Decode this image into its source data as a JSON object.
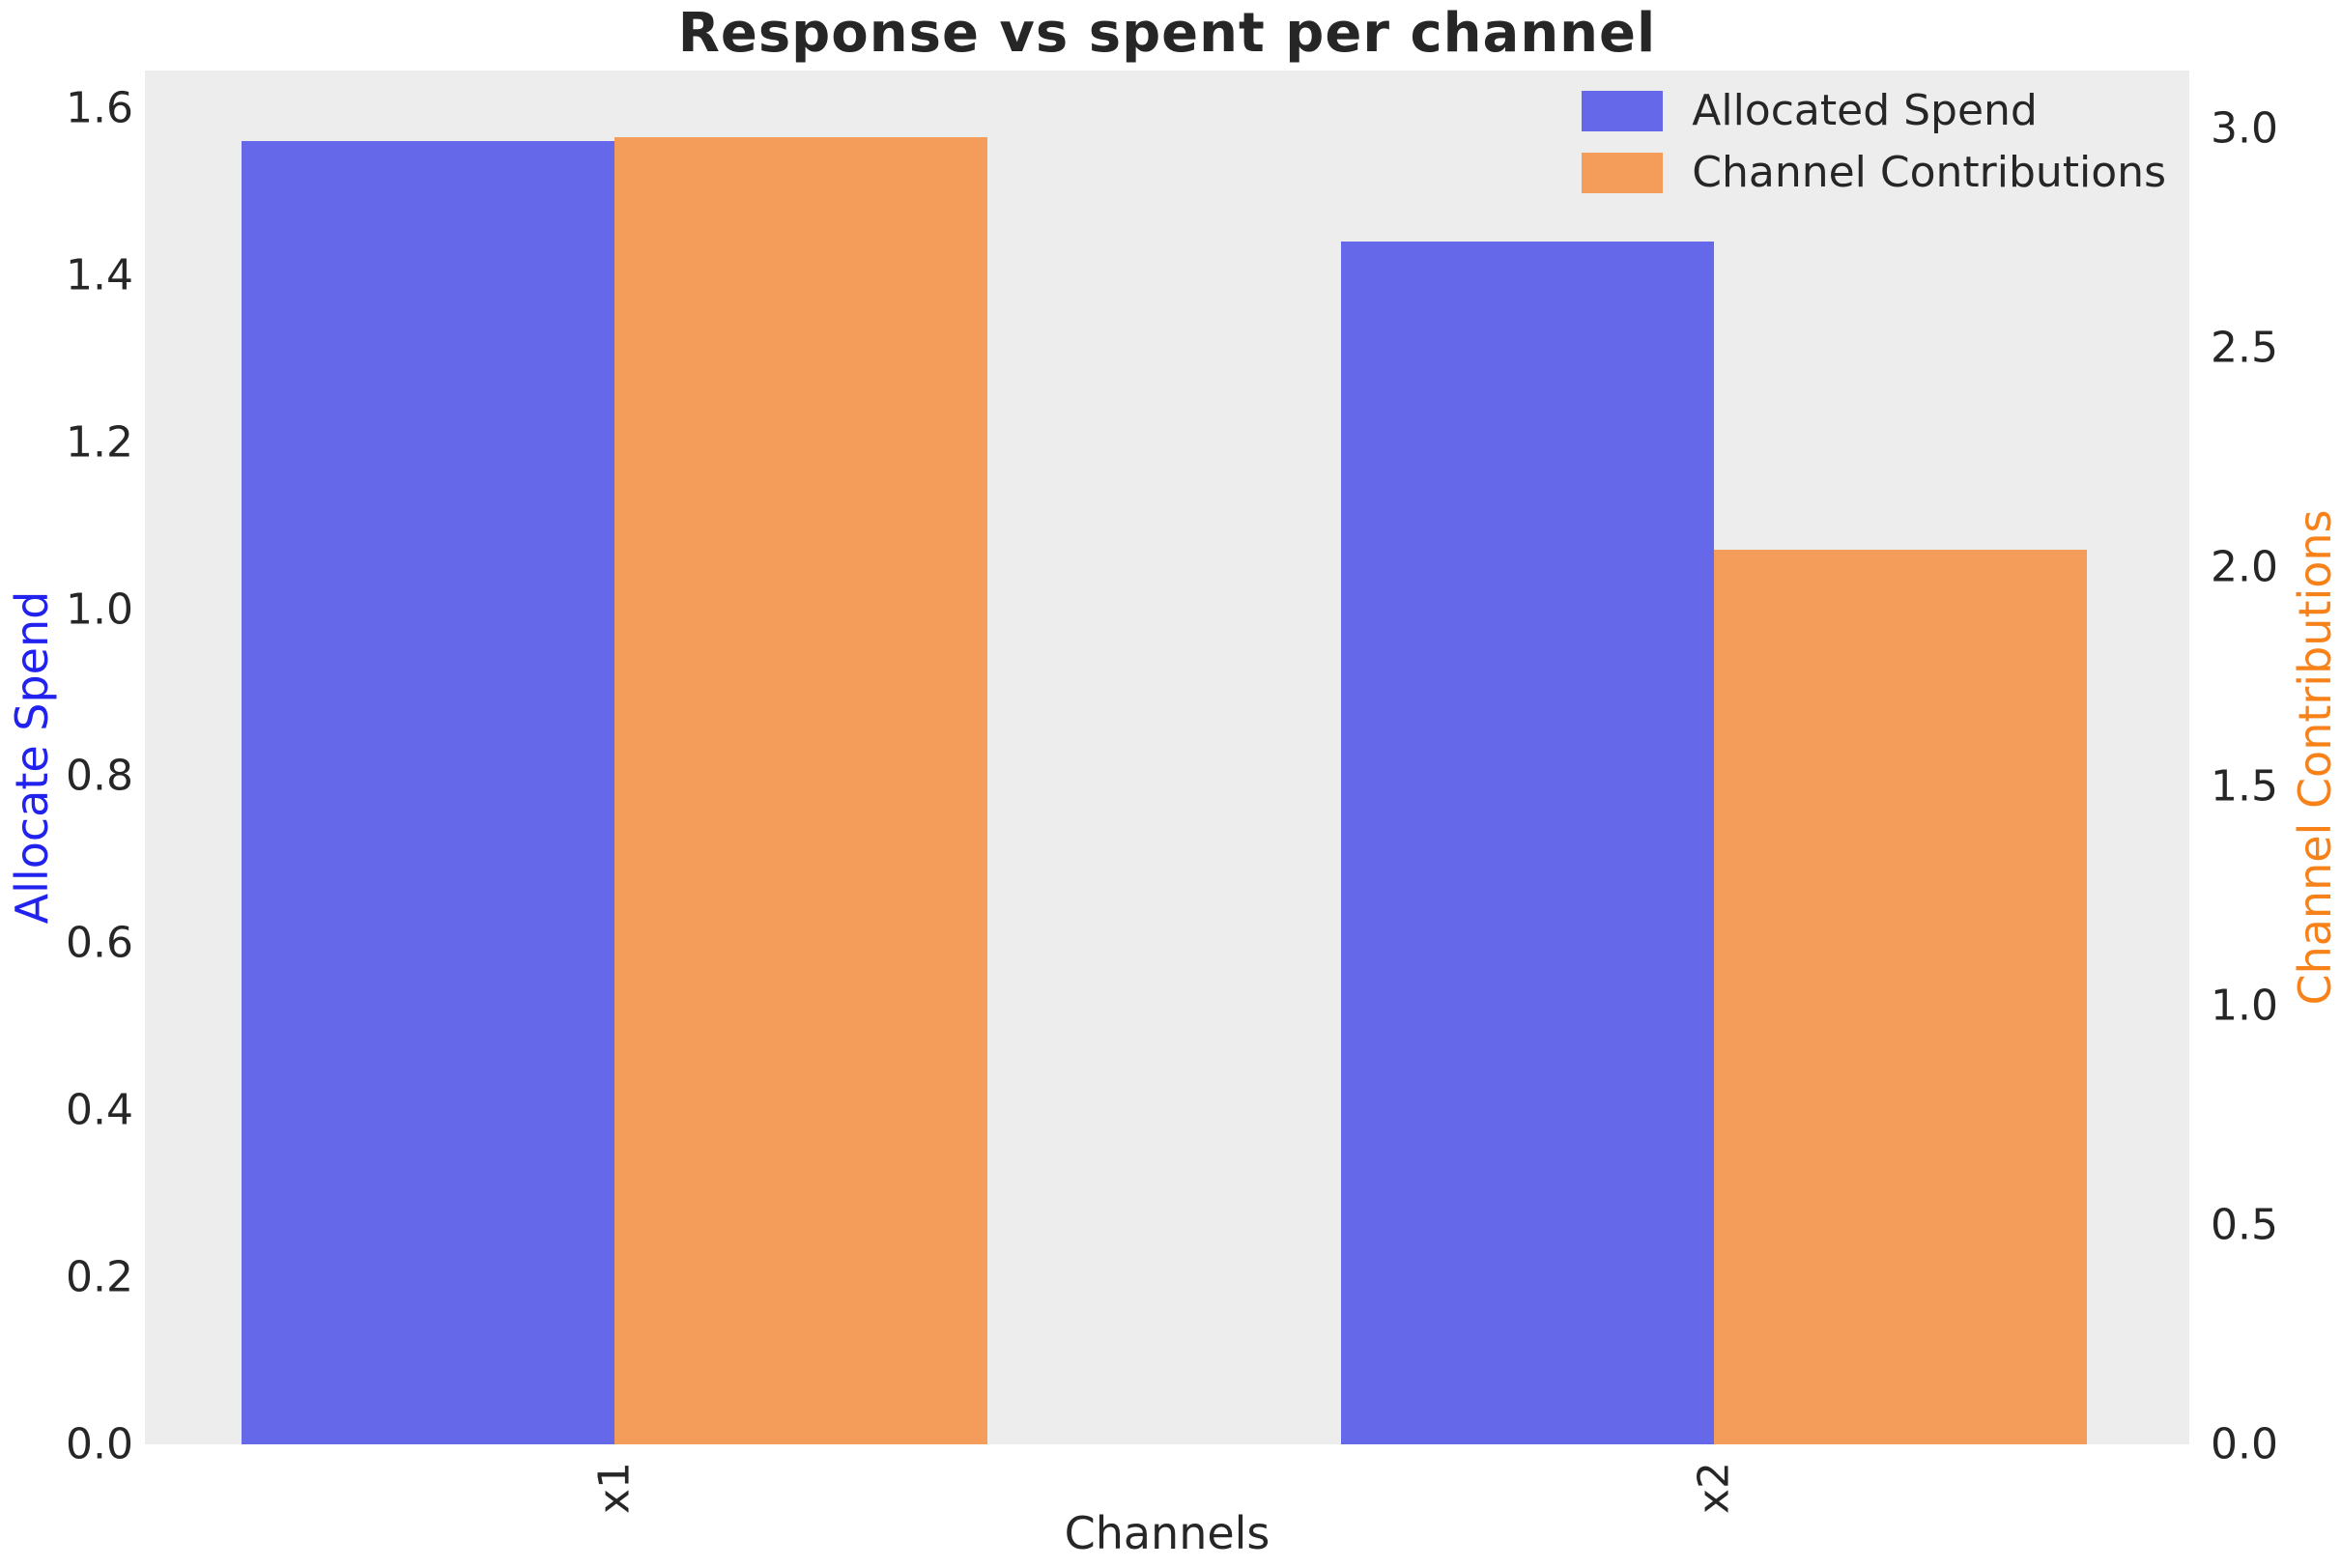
{
  "chart_data": {
    "type": "bar",
    "title": "Response vs spent per channel",
    "xlabel": "Channels",
    "categories": [
      "x1",
      "x2"
    ],
    "series": [
      {
        "name": "Allocated Spend",
        "axis": "left",
        "color": "#6569e9",
        "values": [
          1.56,
          1.44
        ]
      },
      {
        "name": "Channel Contributions",
        "axis": "right",
        "color": "#f49c5a",
        "values": [
          2.98,
          2.04
        ]
      }
    ],
    "axes": {
      "left": {
        "label": "Allocate Spend",
        "color": "#2222ee",
        "ticks": [
          0.0,
          0.2,
          0.4,
          0.6,
          0.8,
          1.0,
          1.2,
          1.4,
          1.6
        ],
        "range": [
          0,
          1.645
        ]
      },
      "right": {
        "label": "Channel Contributions",
        "color": "#f8821a",
        "ticks": [
          0.0,
          0.5,
          1.0,
          1.5,
          2.0,
          2.5,
          3.0
        ],
        "range": [
          0,
          3.133
        ]
      }
    },
    "legend": {
      "position": "upper right",
      "entries": [
        "Allocated Spend",
        "Channel Contributions"
      ]
    },
    "plot_background": "#ededed",
    "text_color": "#262626",
    "grid": false
  }
}
